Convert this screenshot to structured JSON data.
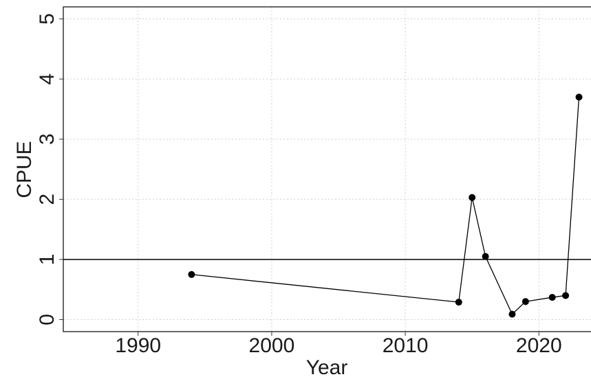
{
  "chart_data": {
    "type": "line",
    "x_label": "Year",
    "y_label": "CPUE",
    "x": [
      1994,
      2014,
      2015,
      2016,
      2018,
      2019,
      2021,
      2022,
      2023
    ],
    "series": [
      {
        "name": "CPUE",
        "color": "#000000",
        "values": [
          0.75,
          0.29,
          2.03,
          1.05,
          0.09,
          0.3,
          0.37,
          0.4,
          3.7
        ]
      }
    ],
    "xlim": [
      1984.4,
      2023.9
    ],
    "xticks": [
      1990,
      2000,
      2010,
      2020
    ],
    "ylim": [
      -0.2,
      5.2
    ],
    "yticks": [
      0,
      1,
      2,
      3,
      4,
      5
    ],
    "hline": 1,
    "grid": true
  }
}
